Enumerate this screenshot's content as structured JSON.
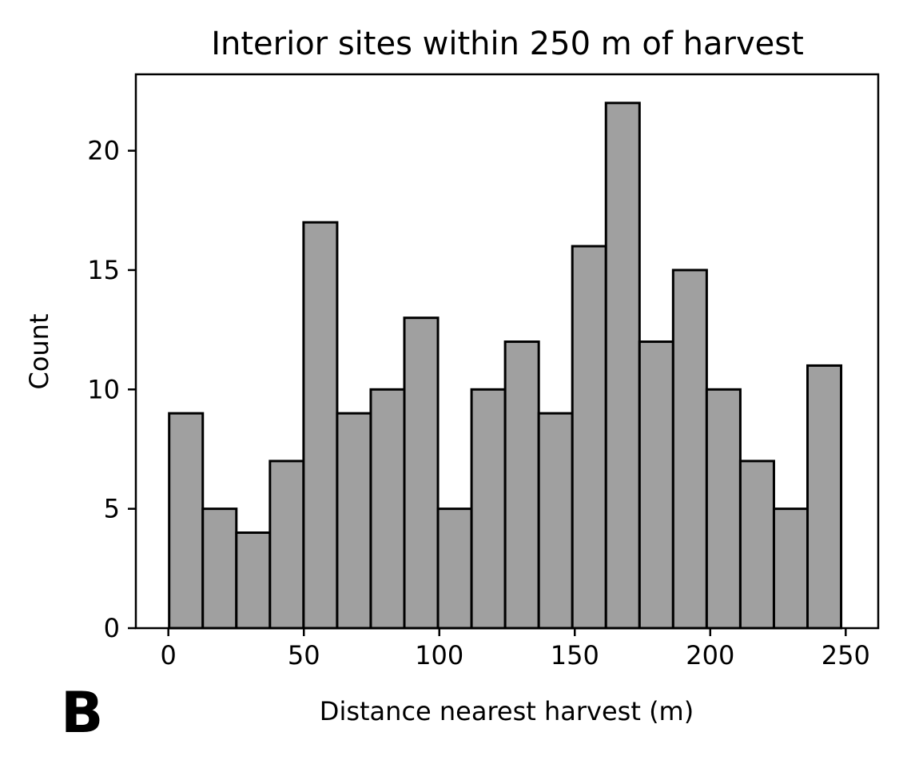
{
  "panel_label": "B",
  "colors": {
    "bar_fill": "#a0a0a0",
    "bar_edge": "#000000",
    "axis": "#000000",
    "background": "#ffffff"
  },
  "chart_data": {
    "type": "bar",
    "subtype": "histogram",
    "title": "Interior sites within 250 m of harvest",
    "xlabel": "Distance nearest harvest (m)",
    "ylabel": "Count",
    "xlim": [
      -12,
      262
    ],
    "ylim": [
      0,
      23.2
    ],
    "x_ticks": [
      0,
      50,
      100,
      150,
      200,
      250
    ],
    "y_ticks": [
      0,
      5,
      10,
      15,
      20
    ],
    "x_tick_labels": [
      "0",
      "50",
      "100",
      "150",
      "200",
      "250"
    ],
    "y_tick_labels": [
      "0",
      "5",
      "10",
      "15",
      "20"
    ],
    "grid": false,
    "legend": false,
    "bin_edges": [
      0.3,
      12.7,
      25.1,
      37.5,
      49.9,
      62.3,
      74.7,
      87.1,
      99.5,
      111.9,
      124.3,
      136.7,
      149.1,
      161.5,
      173.9,
      186.3,
      198.7,
      211.1,
      223.5,
      235.9,
      248.3
    ],
    "values": [
      9,
      5,
      4,
      7,
      17,
      9,
      10,
      13,
      5,
      10,
      12,
      9,
      16,
      22,
      12,
      15,
      10,
      7,
      5,
      11
    ]
  }
}
